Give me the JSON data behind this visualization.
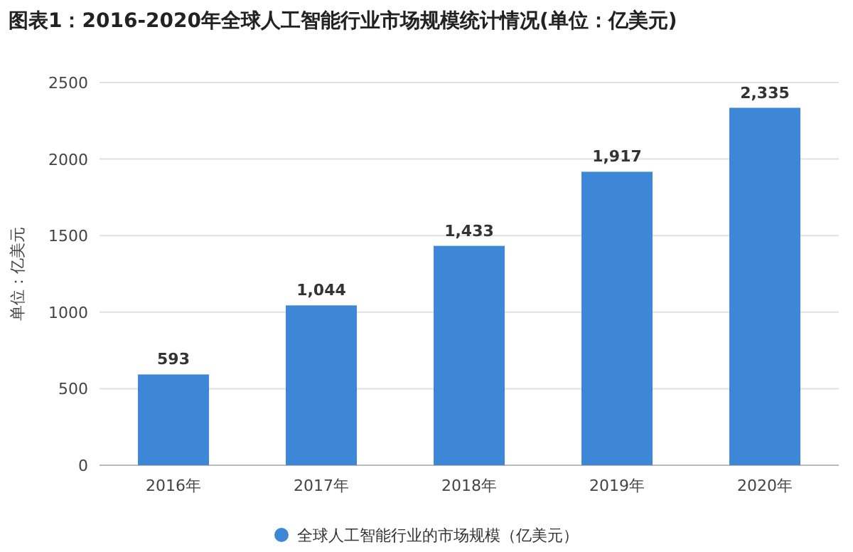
{
  "chart_data": {
    "type": "bar",
    "title": "图表1：2016-2020年全球人工智能行业市场规模统计情况(单位：亿美元)",
    "ylabel": "单位：亿美元",
    "categories": [
      "2016年",
      "2017年",
      "2018年",
      "2019年",
      "2020年"
    ],
    "series": [
      {
        "name": "全球人工智能行业的市场规模（亿美元）",
        "color": "#3d87d6",
        "values": [
          593,
          1044,
          1433,
          1917,
          2335
        ],
        "value_labels": [
          "593",
          "1,044",
          "1,433",
          "1,917",
          "2,335"
        ]
      }
    ],
    "ylim": [
      0,
      2500
    ],
    "yticks": [
      0,
      500,
      1000,
      1500,
      2000,
      2500
    ],
    "grid": "y",
    "legend": "bottom"
  }
}
